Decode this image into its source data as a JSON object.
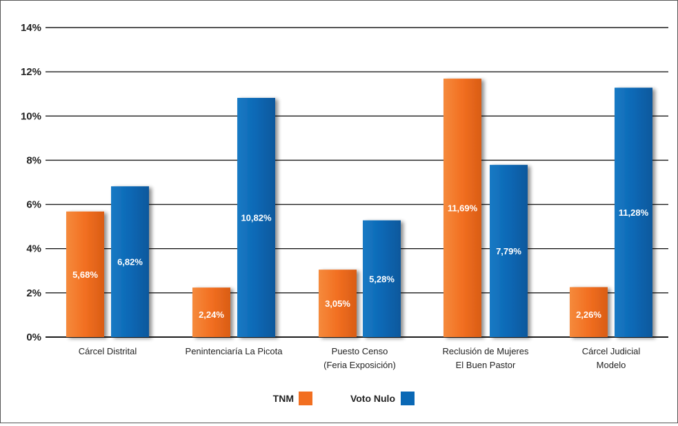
{
  "chart_data": {
    "type": "bar",
    "title": "",
    "xlabel": "",
    "ylabel": "",
    "ylim": [
      0,
      14
    ],
    "yticks": [
      0,
      2,
      4,
      6,
      8,
      10,
      12,
      14
    ],
    "ytick_labels": [
      "0%",
      "2%",
      "4%",
      "6%",
      "8%",
      "10%",
      "12%",
      "14%"
    ],
    "grid": true,
    "legend_position": "bottom",
    "categories": [
      [
        "Cárcel Distrital"
      ],
      [
        "Penintenciaría La Picota"
      ],
      [
        "Puesto Censo",
        "(Feria Exposición)"
      ],
      [
        "Reclusión de Mujeres",
        "El Buen Pastor"
      ],
      [
        "Cárcel Judicial",
        "Modelo"
      ]
    ],
    "series": [
      {
        "name": "TNM",
        "color": "#f26f21",
        "values": [
          5.68,
          2.24,
          3.05,
          11.69,
          2.26
        ],
        "labels": [
          "5,68%",
          "2,24%",
          "3,05%",
          "11,69%",
          "2,26%"
        ]
      },
      {
        "name": "Voto Nulo",
        "color": "#0a68b5",
        "values": [
          6.82,
          10.82,
          5.28,
          7.79,
          11.28
        ],
        "labels": [
          "6,82%",
          "10,82%",
          "5,28%",
          "7,79%",
          "11,28%"
        ]
      }
    ]
  }
}
